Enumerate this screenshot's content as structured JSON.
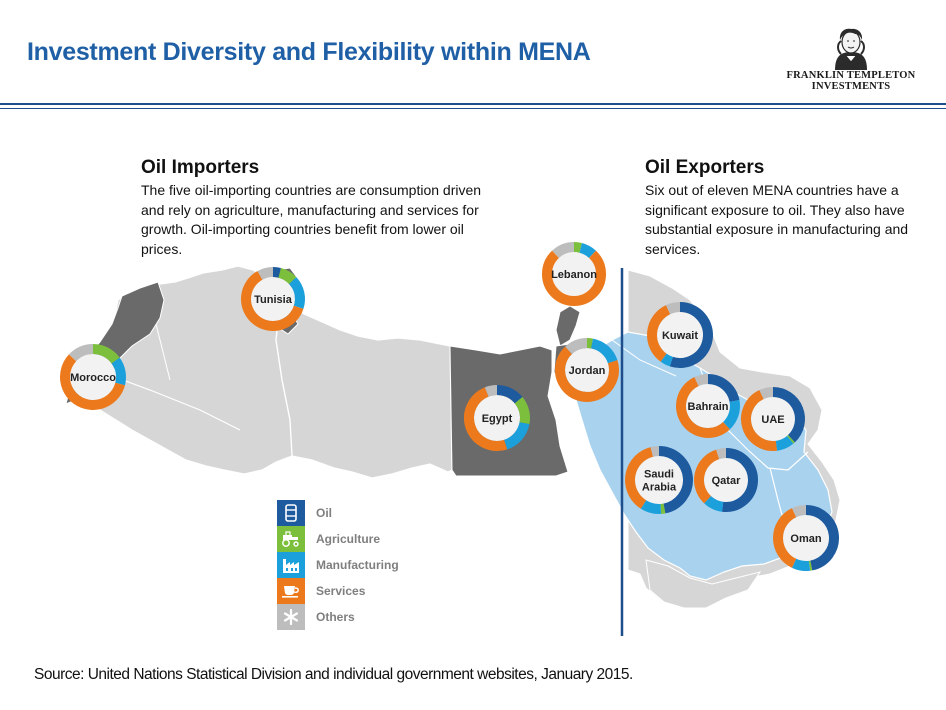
{
  "title": "Investment Diversity and Flexibility within MENA",
  "logo": {
    "line1": "FRANKLIN TEMPLETON",
    "line2": "INVESTMENTS"
  },
  "importers": {
    "heading": "Oil Importers",
    "body": "The five oil-importing countries are consumption driven and rely on agriculture, manufacturing and services for growth. Oil-importing countries benefit from lower oil prices."
  },
  "exporters": {
    "heading": "Oil Exporters",
    "body": "Six out of eleven MENA countries have a significant exposure to oil. They also have substantial exposure in manufacturing and services."
  },
  "colors": {
    "oil": "#1d5a9e",
    "agriculture": "#7cbf3c",
    "manufacturing": "#1ca0dc",
    "services": "#ec7a1c",
    "others": "#bdbdbd",
    "importer_land": "#6a6a6a",
    "region_land": "#d6d6d6",
    "exporter_land": "#a9d2ef"
  },
  "legend": [
    {
      "key": "oil",
      "label": "Oil",
      "icon": "oil-barrel-icon"
    },
    {
      "key": "agriculture",
      "label": "Agriculture",
      "icon": "tractor-icon"
    },
    {
      "key": "manufacturing",
      "label": "Manufacturing",
      "icon": "factory-icon"
    },
    {
      "key": "services",
      "label": "Services",
      "icon": "coffee-cup-icon"
    },
    {
      "key": "others",
      "label": "Others",
      "icon": "asterisk-icon"
    }
  ],
  "countries": [
    {
      "id": "tunisia",
      "name": "Tunisia",
      "shares": {
        "oil": 0.04,
        "agriculture": 0.09,
        "manufacturing": 0.17,
        "services": 0.62,
        "others": 0.08
      }
    },
    {
      "id": "morocco",
      "name": "Morocco",
      "shares": {
        "oil": 0.0,
        "agriculture": 0.15,
        "manufacturing": 0.14,
        "services": 0.58,
        "others": 0.13
      }
    },
    {
      "id": "lebanon",
      "name": "Lebanon",
      "shares": {
        "oil": 0.0,
        "agriculture": 0.04,
        "manufacturing": 0.08,
        "services": 0.76,
        "others": 0.12
      }
    },
    {
      "id": "jordan",
      "name": "Jordan",
      "shares": {
        "oil": 0.0,
        "agriculture": 0.03,
        "manufacturing": 0.17,
        "services": 0.68,
        "others": 0.12
      }
    },
    {
      "id": "egypt",
      "name": "Egypt",
      "shares": {
        "oil": 0.14,
        "agriculture": 0.14,
        "manufacturing": 0.17,
        "services": 0.49,
        "others": 0.06
      }
    },
    {
      "id": "kuwait",
      "name": "Kuwait",
      "shares": {
        "oil": 0.55,
        "agriculture": 0.0,
        "manufacturing": 0.05,
        "services": 0.33,
        "others": 0.07
      }
    },
    {
      "id": "bahrain",
      "name": "Bahrain",
      "shares": {
        "oil": 0.22,
        "agriculture": 0.0,
        "manufacturing": 0.16,
        "services": 0.55,
        "others": 0.07
      }
    },
    {
      "id": "uae",
      "name": "UAE",
      "shares": {
        "oil": 0.38,
        "agriculture": 0.01,
        "manufacturing": 0.09,
        "services": 0.45,
        "others": 0.07
      }
    },
    {
      "id": "saudi",
      "name": "Saudi Arabia",
      "lines": [
        "Saudi",
        "Arabia"
      ],
      "shares": {
        "oil": 0.47,
        "agriculture": 0.02,
        "manufacturing": 0.1,
        "services": 0.37,
        "others": 0.04
      }
    },
    {
      "id": "qatar",
      "name": "Qatar",
      "shares": {
        "oil": 0.52,
        "agriculture": 0.0,
        "manufacturing": 0.1,
        "services": 0.33,
        "others": 0.05
      }
    },
    {
      "id": "oman",
      "name": "Oman",
      "shares": {
        "oil": 0.47,
        "agriculture": 0.01,
        "manufacturing": 0.09,
        "services": 0.36,
        "others": 0.07
      }
    }
  ],
  "source": "Source: United Nations Statistical  Division and individual government websites, January 2015."
}
